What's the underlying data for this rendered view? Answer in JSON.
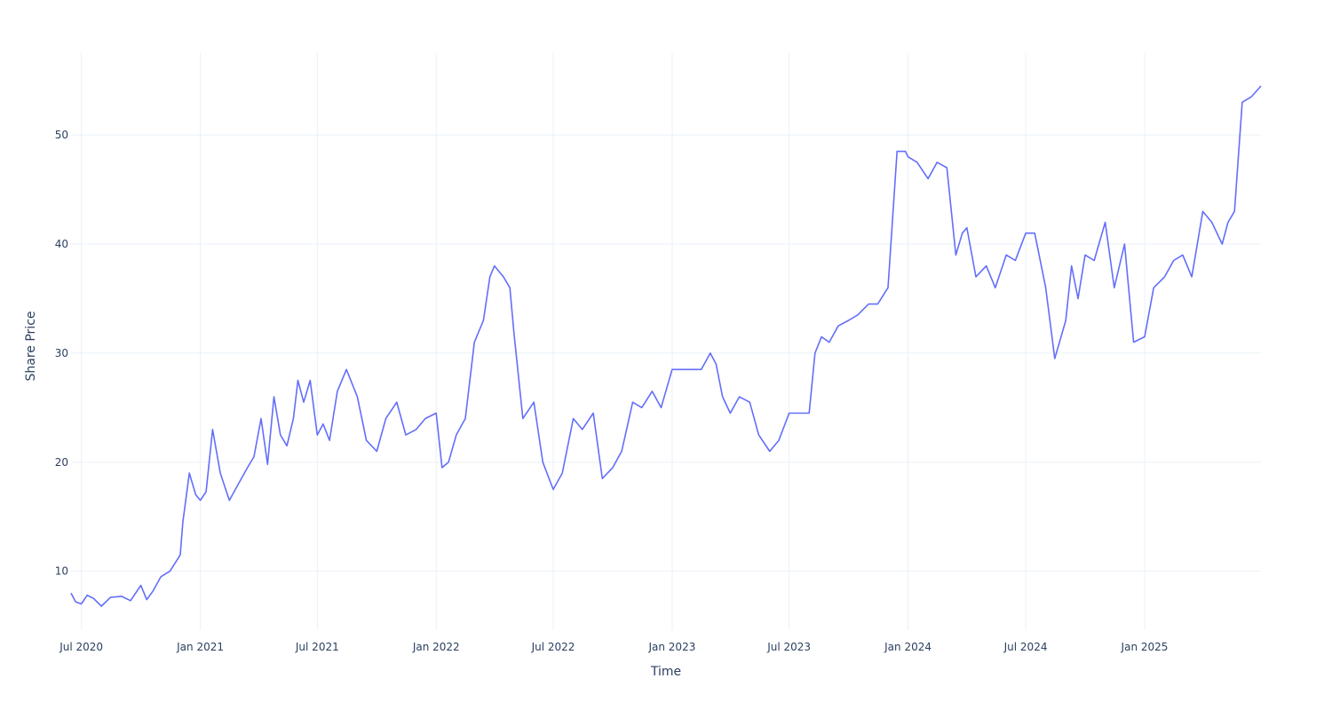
{
  "chart_data": {
    "type": "line",
    "title": "",
    "xlabel": "Time",
    "ylabel": "Share Price",
    "xlim": [
      "2020-06-15",
      "2025-06-30"
    ],
    "ylim": [
      4.6,
      57.5
    ],
    "grid": true,
    "legend": "none",
    "x_ticks": [
      {
        "date": "2020-07-01",
        "label": "Jul 2020"
      },
      {
        "date": "2021-01-01",
        "label": "Jan 2021"
      },
      {
        "date": "2021-07-01",
        "label": "Jul 2021"
      },
      {
        "date": "2022-01-01",
        "label": "Jan 2022"
      },
      {
        "date": "2022-07-01",
        "label": "Jul 2022"
      },
      {
        "date": "2023-01-01",
        "label": "Jan 2023"
      },
      {
        "date": "2023-07-01",
        "label": "Jul 2023"
      },
      {
        "date": "2024-01-01",
        "label": "Jan 2024"
      },
      {
        "date": "2024-07-01",
        "label": "Jul 2024"
      },
      {
        "date": "2025-01-01",
        "label": "Jan 2025"
      }
    ],
    "y_ticks": [
      {
        "value": 10,
        "label": "10"
      },
      {
        "value": 20,
        "label": "20"
      },
      {
        "value": 30,
        "label": "30"
      },
      {
        "value": 40,
        "label": "40"
      },
      {
        "value": 50,
        "label": "50"
      }
    ],
    "series": [
      {
        "color": "#636efa",
        "x": [
          "2020-06-15",
          "2020-06-22",
          "2020-07-01",
          "2020-07-10",
          "2020-07-20",
          "2020-08-01",
          "2020-08-15",
          "2020-09-01",
          "2020-09-15",
          "2020-10-01",
          "2020-10-10",
          "2020-10-20",
          "2020-11-01",
          "2020-11-15",
          "2020-12-01",
          "2020-12-05",
          "2020-12-15",
          "2020-12-25",
          "2021-01-01",
          "2021-01-10",
          "2021-01-20",
          "2021-02-01",
          "2021-02-15",
          "2021-03-01",
          "2021-03-15",
          "2021-03-25",
          "2021-04-05",
          "2021-04-15",
          "2021-04-25",
          "2021-05-05",
          "2021-05-15",
          "2021-05-25",
          "2021-06-01",
          "2021-06-10",
          "2021-06-20",
          "2021-07-01",
          "2021-07-10",
          "2021-07-20",
          "2021-08-01",
          "2021-08-15",
          "2021-09-01",
          "2021-09-15",
          "2021-10-01",
          "2021-10-15",
          "2021-11-01",
          "2021-11-15",
          "2021-12-01",
          "2021-12-15",
          "2022-01-01",
          "2022-01-10",
          "2022-01-20",
          "2022-02-01",
          "2022-02-15",
          "2022-03-01",
          "2022-03-15",
          "2022-03-25",
          "2022-04-01",
          "2022-04-15",
          "2022-04-25",
          "2022-05-01",
          "2022-05-15",
          "2022-06-01",
          "2022-06-15",
          "2022-07-01",
          "2022-07-15",
          "2022-08-01",
          "2022-08-15",
          "2022-09-01",
          "2022-09-15",
          "2022-10-01",
          "2022-10-15",
          "2022-11-01",
          "2022-11-15",
          "2022-12-01",
          "2022-12-15",
          "2023-01-01",
          "2023-01-15",
          "2023-02-01",
          "2023-02-15",
          "2023-03-01",
          "2023-03-10",
          "2023-03-20",
          "2023-04-01",
          "2023-04-15",
          "2023-05-01",
          "2023-05-15",
          "2023-06-01",
          "2023-06-15",
          "2023-07-01",
          "2023-07-15",
          "2023-08-01",
          "2023-08-10",
          "2023-08-20",
          "2023-09-01",
          "2023-09-15",
          "2023-10-01",
          "2023-10-15",
          "2023-11-01",
          "2023-11-15",
          "2023-12-01",
          "2023-12-15",
          "2023-12-28",
          "2024-01-01",
          "2024-01-15",
          "2024-02-01",
          "2024-02-15",
          "2024-03-01",
          "2024-03-15",
          "2024-03-25",
          "2024-04-01",
          "2024-04-15",
          "2024-05-01",
          "2024-05-15",
          "2024-06-01",
          "2024-06-15",
          "2024-07-01",
          "2024-07-15",
          "2024-08-01",
          "2024-08-15",
          "2024-09-01",
          "2024-09-10",
          "2024-09-20",
          "2024-10-01",
          "2024-10-15",
          "2024-11-01",
          "2024-11-15",
          "2024-12-01",
          "2024-12-15",
          "2025-01-01",
          "2025-01-15",
          "2025-02-01",
          "2025-02-15",
          "2025-03-01",
          "2025-03-15",
          "2025-04-01",
          "2025-04-15",
          "2025-05-01",
          "2025-05-10",
          "2025-05-20",
          "2025-06-01",
          "2025-06-15",
          "2025-06-30"
        ],
        "values": [
          8.0,
          7.2,
          7.0,
          7.8,
          7.5,
          6.8,
          7.6,
          7.7,
          7.3,
          8.7,
          7.4,
          8.2,
          9.5,
          10.0,
          11.5,
          14.5,
          19.0,
          17.0,
          16.5,
          17.3,
          23.0,
          19.0,
          16.5,
          18.0,
          19.5,
          20.5,
          24.0,
          19.8,
          26.0,
          22.5,
          21.5,
          24.0,
          27.5,
          25.5,
          27.5,
          22.5,
          23.5,
          22.0,
          26.5,
          28.5,
          26.0,
          22.0,
          21.0,
          24.0,
          25.5,
          22.5,
          23.0,
          24.0,
          24.5,
          19.5,
          20.0,
          22.5,
          24.0,
          31.0,
          33.0,
          37.0,
          38.0,
          37.0,
          36.0,
          32.0,
          24.0,
          25.5,
          20.0,
          17.5,
          19.0,
          24.0,
          23.0,
          24.5,
          18.5,
          19.5,
          21.0,
          25.5,
          25.0,
          26.5,
          25.0,
          28.5,
          28.5,
          28.5,
          28.5,
          30.0,
          29.0,
          26.0,
          24.5,
          26.0,
          25.5,
          22.5,
          21.0,
          22.0,
          24.5,
          24.5,
          24.5,
          30.0,
          31.5,
          31.0,
          32.5,
          33.0,
          33.5,
          34.5,
          34.5,
          36.0,
          48.5,
          48.5,
          48.0,
          47.5,
          46.0,
          47.5,
          47.0,
          39.0,
          41.0,
          41.5,
          37.0,
          38.0,
          36.0,
          39.0,
          38.5,
          41.0,
          41.0,
          36.0,
          29.5,
          33.0,
          38.0,
          35.0,
          39.0,
          38.5,
          42.0,
          36.0,
          40.0,
          31.0,
          31.5,
          36.0,
          37.0,
          38.5,
          39.0,
          37.0,
          43.0,
          42.0,
          40.0,
          42.0,
          43.0,
          53.0,
          53.5,
          54.5
        ]
      }
    ]
  }
}
